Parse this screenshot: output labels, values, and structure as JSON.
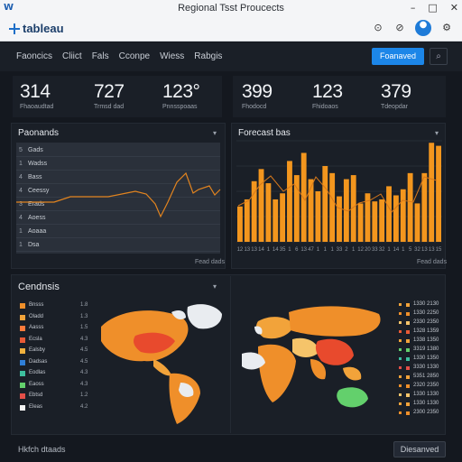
{
  "window": {
    "title": "Regional Tsst Proucects",
    "app_glyph": "W"
  },
  "appbar": {
    "logo_text": "tableau",
    "icons": [
      "history-icon",
      "alert-icon",
      "user-avatar",
      "settings-icon"
    ]
  },
  "nav": {
    "items": [
      "Faoncics",
      "Cliict",
      "Fals",
      "Cconpe",
      "Wiess",
      "Rabgis"
    ],
    "primary_button": "Foanaved",
    "search_icon": "search-icon"
  },
  "kpis_left": [
    {
      "value": "314",
      "label": "Fhaoaudtad"
    },
    {
      "value": "727",
      "label": "Trmsd dad"
    },
    {
      "value": "123°",
      "label": "Pnnsspoaas"
    }
  ],
  "kpis_right": [
    {
      "value": "399",
      "label": "Fhodocd"
    },
    {
      "value": "123",
      "label": "Fhidoaos"
    },
    {
      "value": "379",
      "label": "Tdeopdar"
    }
  ],
  "left_panel": {
    "title": "Paonands",
    "footer": "Fead dads",
    "rows": [
      {
        "index": "5",
        "name": "Gads"
      },
      {
        "index": "1",
        "name": "Wadss"
      },
      {
        "index": "4",
        "name": "Bass"
      },
      {
        "index": "4",
        "name": "Ceessy"
      },
      {
        "index": "3",
        "name": "Erads"
      },
      {
        "index": "4",
        "name": "Aoess"
      },
      {
        "index": "1",
        "name": "Aoaaa"
      },
      {
        "index": "1",
        "name": "Dsa"
      }
    ]
  },
  "forecast_panel": {
    "title": "Forecast bas",
    "footer": "Fead dads"
  },
  "chart_data": {
    "type": "bar",
    "title": "Forecast bas",
    "x": [
      "12",
      "13",
      "13",
      "14",
      "1",
      "14",
      "35",
      "1",
      "6",
      "13",
      "47",
      "1",
      "1",
      "1",
      "33",
      "2",
      "1",
      "12",
      "20",
      "33",
      "32",
      "1",
      "14",
      "1",
      "5",
      "32",
      "13",
      "13",
      "15"
    ],
    "values": [
      35,
      42,
      60,
      72,
      58,
      42,
      48,
      80,
      66,
      88,
      62,
      50,
      75,
      68,
      45,
      62,
      66,
      38,
      48,
      40,
      42,
      55,
      46,
      52,
      68,
      38,
      68,
      98,
      95
    ],
    "ylim": [
      0,
      100
    ],
    "grid": true,
    "accent": "#f3961e"
  },
  "map_panel": {
    "title": "Cendnsis",
    "legend": [
      {
        "name": "Bnsss",
        "value": "1.8",
        "color": "#ef8f2a"
      },
      {
        "name": "Oladd",
        "value": "1.3",
        "color": "#f2a33a"
      },
      {
        "name": "Aasss",
        "value": "1.5",
        "color": "#ff7b3b"
      },
      {
        "name": "Ecsla",
        "value": "4.3",
        "color": "#e85a36"
      },
      {
        "name": "Ealsby",
        "value": "4.5",
        "color": "#f0b13d"
      },
      {
        "name": "Dadsas",
        "value": "4.5",
        "color": "#2f7fd8"
      },
      {
        "name": "Eodlas",
        "value": "4.3",
        "color": "#3dbf9e"
      },
      {
        "name": "Eaoss",
        "value": "4.3",
        "color": "#63d06c"
      },
      {
        "name": "Ebtsd",
        "value": "1.2",
        "color": "#e44f48"
      },
      {
        "name": "Eleas",
        "value": "4.2",
        "color": "#f5f5f5"
      }
    ],
    "right_list": [
      {
        "text": "1330 2130",
        "color": "#f2a33a"
      },
      {
        "text": "1330 2250",
        "color": "#ef8f2a"
      },
      {
        "text": "2330 2350",
        "color": "#f5c46a"
      },
      {
        "text": "1328 1359",
        "color": "#e85a36"
      },
      {
        "text": "1338 1350",
        "color": "#f2a33a"
      },
      {
        "text": "3319 1380",
        "color": "#63d06c"
      },
      {
        "text": "1330 1350",
        "color": "#3dbf9e"
      },
      {
        "text": "3330 1330",
        "color": "#e44f48"
      },
      {
        "text": "5351 2850",
        "color": "#f2a33a"
      },
      {
        "text": "2320 2350",
        "color": "#ef8f2a"
      },
      {
        "text": "1330 1330",
        "color": "#f5c46a"
      },
      {
        "text": "1330 1330",
        "color": "#f2a33a"
      },
      {
        "text": "2300 2350",
        "color": "#ef8f2a"
      }
    ]
  },
  "bottom": {
    "label": "Hkfch dtaads",
    "button": "Diesanved"
  }
}
